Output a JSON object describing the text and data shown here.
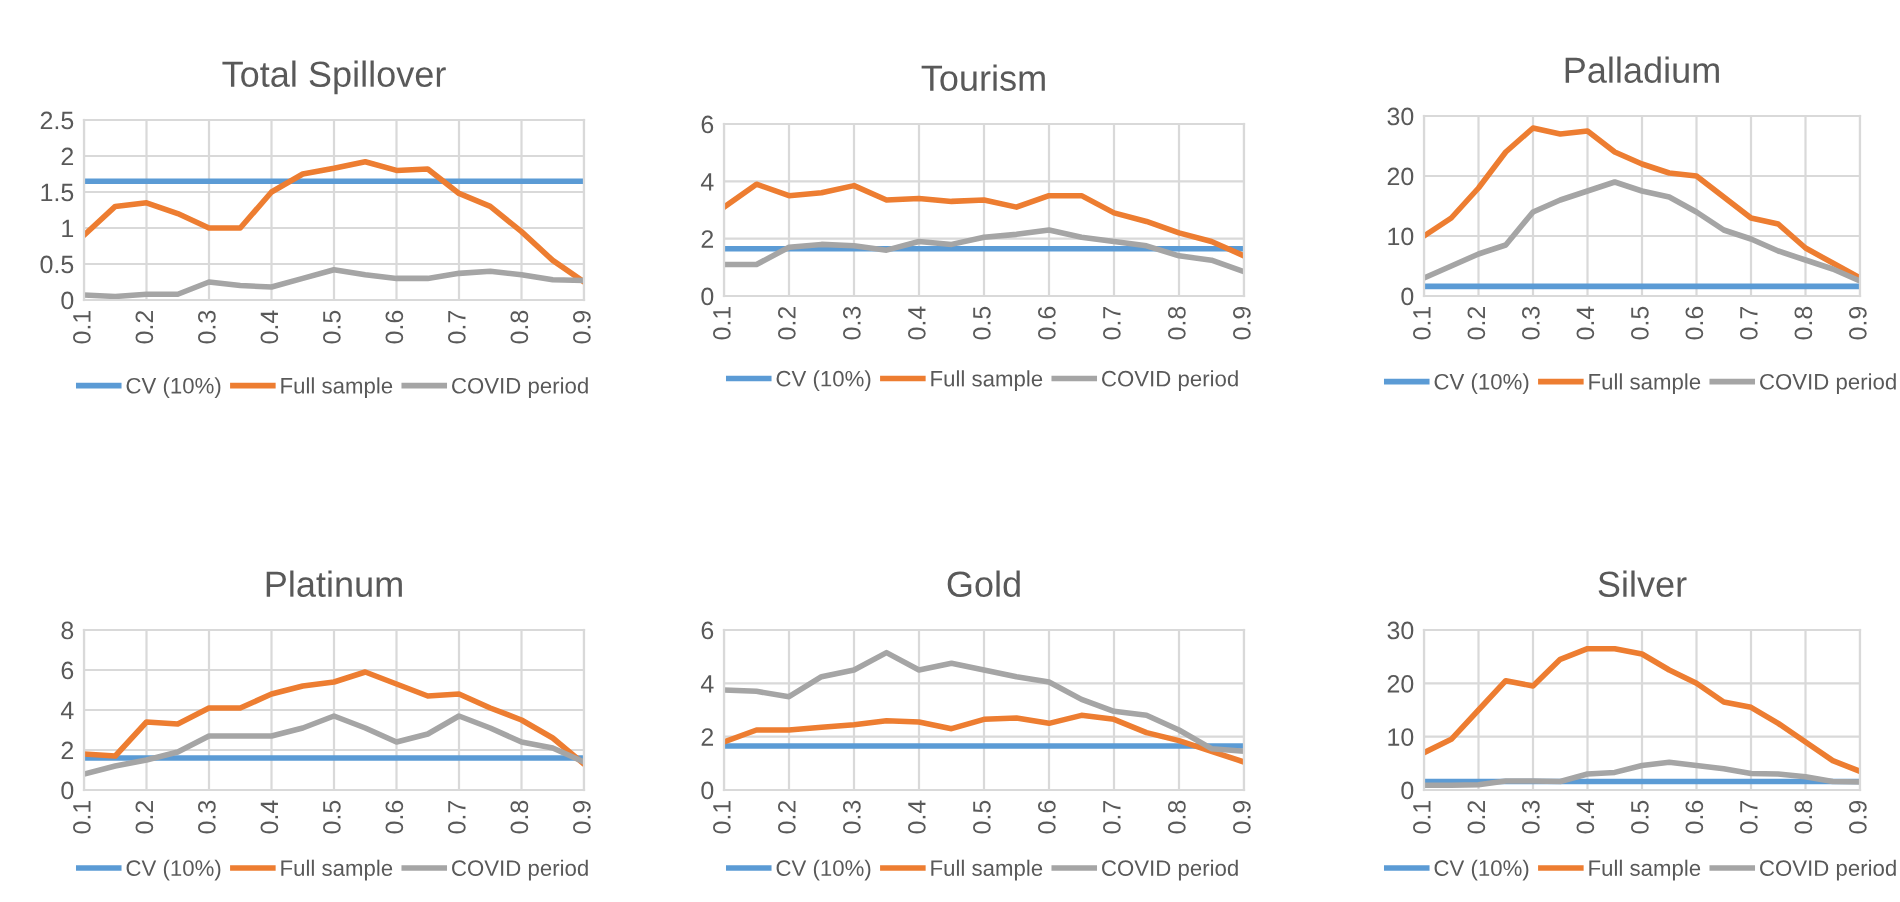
{
  "chart_data": [
    {
      "type": "line",
      "title": "Total Spillover",
      "x": [
        0.1,
        0.15,
        0.2,
        0.25,
        0.3,
        0.35,
        0.4,
        0.45,
        0.5,
        0.55,
        0.6,
        0.65,
        0.7,
        0.75,
        0.8,
        0.85,
        0.9
      ],
      "xlim": [
        0.1,
        0.9
      ],
      "xticks": [
        0.1,
        0.2,
        0.3,
        0.4,
        0.5,
        0.6,
        0.7,
        0.8,
        0.9
      ],
      "ylim": [
        0,
        2.5
      ],
      "yticks": [
        0,
        0.5,
        1,
        1.5,
        2,
        2.5
      ],
      "grid": true,
      "legend": "bottom",
      "series": [
        {
          "name": "CV (10%)",
          "color": "#5b9bd5",
          "values": [
            1.65,
            1.65,
            1.65,
            1.65,
            1.65,
            1.65,
            1.65,
            1.65,
            1.65,
            1.65,
            1.65,
            1.65,
            1.65,
            1.65,
            1.65,
            1.65,
            1.65
          ]
        },
        {
          "name": "Full sample",
          "color": "#ed7d31",
          "values": [
            0.9,
            1.3,
            1.35,
            1.2,
            1.0,
            1.0,
            1.5,
            1.75,
            1.83,
            1.92,
            1.8,
            1.82,
            1.48,
            1.3,
            0.95,
            0.55,
            0.25
          ]
        },
        {
          "name": "COVID period",
          "color": "#a5a5a5",
          "values": [
            0.07,
            0.05,
            0.08,
            0.08,
            0.25,
            0.2,
            0.18,
            0.3,
            0.42,
            0.35,
            0.3,
            0.3,
            0.37,
            0.4,
            0.35,
            0.28,
            0.27
          ]
        }
      ]
    },
    {
      "type": "line",
      "title": "Tourism",
      "x": [
        0.1,
        0.15,
        0.2,
        0.25,
        0.3,
        0.35,
        0.4,
        0.45,
        0.5,
        0.55,
        0.6,
        0.65,
        0.7,
        0.75,
        0.8,
        0.85,
        0.9
      ],
      "xlim": [
        0.1,
        0.9
      ],
      "xticks": [
        0.1,
        0.2,
        0.3,
        0.4,
        0.5,
        0.6,
        0.7,
        0.8,
        0.9
      ],
      "ylim": [
        0,
        6
      ],
      "yticks": [
        0,
        2,
        4,
        6
      ],
      "grid": true,
      "legend": "bottom",
      "series": [
        {
          "name": "CV (10%)",
          "color": "#5b9bd5",
          "values": [
            1.65,
            1.65,
            1.65,
            1.65,
            1.65,
            1.65,
            1.65,
            1.65,
            1.65,
            1.65,
            1.65,
            1.65,
            1.65,
            1.65,
            1.65,
            1.65,
            1.65
          ]
        },
        {
          "name": "Full sample",
          "color": "#ed7d31",
          "values": [
            3.1,
            3.9,
            3.5,
            3.6,
            3.85,
            3.35,
            3.4,
            3.3,
            3.35,
            3.1,
            3.5,
            3.5,
            2.9,
            2.6,
            2.2,
            1.9,
            1.4
          ]
        },
        {
          "name": "COVID period",
          "color": "#a5a5a5",
          "values": [
            1.1,
            1.1,
            1.7,
            1.8,
            1.75,
            1.6,
            1.9,
            1.8,
            2.05,
            2.15,
            2.3,
            2.05,
            1.9,
            1.75,
            1.4,
            1.25,
            0.85
          ]
        }
      ]
    },
    {
      "type": "line",
      "title": "Palladium",
      "x": [
        0.1,
        0.15,
        0.2,
        0.25,
        0.3,
        0.35,
        0.4,
        0.45,
        0.5,
        0.55,
        0.6,
        0.65,
        0.7,
        0.75,
        0.8,
        0.85,
        0.9
      ],
      "xlim": [
        0.1,
        0.9
      ],
      "xticks": [
        0.1,
        0.2,
        0.3,
        0.4,
        0.5,
        0.6,
        0.7,
        0.8,
        0.9
      ],
      "ylim": [
        0,
        30
      ],
      "yticks": [
        0,
        10,
        20,
        30
      ],
      "grid": true,
      "legend": "bottom",
      "series": [
        {
          "name": "CV (10%)",
          "color": "#5b9bd5",
          "values": [
            1.6,
            1.6,
            1.6,
            1.6,
            1.6,
            1.6,
            1.6,
            1.6,
            1.6,
            1.6,
            1.6,
            1.6,
            1.6,
            1.6,
            1.6,
            1.6,
            1.6
          ]
        },
        {
          "name": "Full sample",
          "color": "#ed7d31",
          "values": [
            10,
            13,
            18,
            24,
            28,
            27,
            27.5,
            24,
            22,
            20.5,
            20,
            16.5,
            13,
            12,
            8,
            5.5,
            3
          ]
        },
        {
          "name": "COVID period",
          "color": "#a5a5a5",
          "values": [
            3,
            5,
            7,
            8.5,
            14,
            16,
            17.5,
            19,
            17.5,
            16.5,
            14,
            11,
            9.5,
            7.5,
            6,
            4.5,
            2.5
          ]
        }
      ]
    },
    {
      "type": "line",
      "title": "Platinum",
      "x": [
        0.1,
        0.15,
        0.2,
        0.25,
        0.3,
        0.35,
        0.4,
        0.45,
        0.5,
        0.55,
        0.6,
        0.65,
        0.7,
        0.75,
        0.8,
        0.85,
        0.9
      ],
      "xlim": [
        0.1,
        0.9
      ],
      "xticks": [
        0.1,
        0.2,
        0.3,
        0.4,
        0.5,
        0.6,
        0.7,
        0.8,
        0.9
      ],
      "ylim": [
        0,
        8
      ],
      "yticks": [
        0,
        2,
        4,
        6,
        8
      ],
      "grid": true,
      "legend": "bottom",
      "series": [
        {
          "name": "CV (10%)",
          "color": "#5b9bd5",
          "values": [
            1.6,
            1.6,
            1.6,
            1.6,
            1.6,
            1.6,
            1.6,
            1.6,
            1.6,
            1.6,
            1.6,
            1.6,
            1.6,
            1.6,
            1.6,
            1.6,
            1.6
          ]
        },
        {
          "name": "Full sample",
          "color": "#ed7d31",
          "values": [
            1.8,
            1.7,
            3.4,
            3.3,
            4.1,
            4.1,
            4.8,
            5.2,
            5.4,
            5.9,
            5.3,
            4.7,
            4.8,
            4.1,
            3.5,
            2.6,
            1.3
          ]
        },
        {
          "name": "COVID period",
          "color": "#a5a5a5",
          "values": [
            0.8,
            1.2,
            1.5,
            1.9,
            2.7,
            2.7,
            2.7,
            3.1,
            3.7,
            3.1,
            2.4,
            2.8,
            3.7,
            3.1,
            2.4,
            2.1,
            1.4
          ]
        }
      ]
    },
    {
      "type": "line",
      "title": "Gold",
      "x": [
        0.1,
        0.15,
        0.2,
        0.25,
        0.3,
        0.35,
        0.4,
        0.45,
        0.5,
        0.55,
        0.6,
        0.65,
        0.7,
        0.75,
        0.8,
        0.85,
        0.9
      ],
      "xlim": [
        0.1,
        0.9
      ],
      "xticks": [
        0.1,
        0.2,
        0.3,
        0.4,
        0.5,
        0.6,
        0.7,
        0.8,
        0.9
      ],
      "ylim": [
        0,
        6
      ],
      "yticks": [
        0,
        2,
        4,
        6
      ],
      "grid": true,
      "legend": "bottom",
      "series": [
        {
          "name": "CV (10%)",
          "color": "#5b9bd5",
          "values": [
            1.65,
            1.65,
            1.65,
            1.65,
            1.65,
            1.65,
            1.65,
            1.65,
            1.65,
            1.65,
            1.65,
            1.65,
            1.65,
            1.65,
            1.65,
            1.65,
            1.65
          ]
        },
        {
          "name": "Full sample",
          "color": "#ed7d31",
          "values": [
            1.8,
            2.25,
            2.25,
            2.35,
            2.45,
            2.6,
            2.55,
            2.3,
            2.65,
            2.7,
            2.5,
            2.8,
            2.65,
            2.15,
            1.85,
            1.45,
            1.05
          ]
        },
        {
          "name": "COVID period",
          "color": "#a5a5a5",
          "values": [
            3.75,
            3.7,
            3.5,
            4.25,
            4.5,
            5.15,
            4.5,
            4.75,
            4.5,
            4.25,
            4.05,
            3.4,
            2.95,
            2.8,
            2.25,
            1.55,
            1.45
          ]
        }
      ]
    },
    {
      "type": "line",
      "title": "Silver",
      "x": [
        0.1,
        0.15,
        0.2,
        0.25,
        0.3,
        0.35,
        0.4,
        0.45,
        0.5,
        0.55,
        0.6,
        0.65,
        0.7,
        0.75,
        0.8,
        0.85,
        0.9
      ],
      "xlim": [
        0.1,
        0.9
      ],
      "xticks": [
        0.1,
        0.2,
        0.3,
        0.4,
        0.5,
        0.6,
        0.7,
        0.8,
        0.9
      ],
      "ylim": [
        0,
        30
      ],
      "yticks": [
        0,
        10,
        20,
        30
      ],
      "grid": true,
      "legend": "bottom",
      "series": [
        {
          "name": "CV (10%)",
          "color": "#5b9bd5",
          "values": [
            1.6,
            1.6,
            1.6,
            1.6,
            1.6,
            1.6,
            1.6,
            1.6,
            1.6,
            1.6,
            1.6,
            1.6,
            1.6,
            1.6,
            1.6,
            1.6,
            1.6
          ]
        },
        {
          "name": "Full sample",
          "color": "#ed7d31",
          "values": [
            7,
            9.5,
            15,
            20.5,
            19.5,
            24.5,
            26.5,
            26.5,
            25.5,
            22.5,
            20,
            16.5,
            15.5,
            12.5,
            9,
            5.5,
            3.5
          ]
        },
        {
          "name": "COVID period",
          "color": "#a5a5a5",
          "values": [
            0.9,
            0.9,
            1,
            1.7,
            1.7,
            1.6,
            3,
            3.3,
            4.6,
            5.2,
            4.6,
            4,
            3.1,
            3,
            2.5,
            1.6,
            1.5
          ]
        }
      ]
    }
  ]
}
